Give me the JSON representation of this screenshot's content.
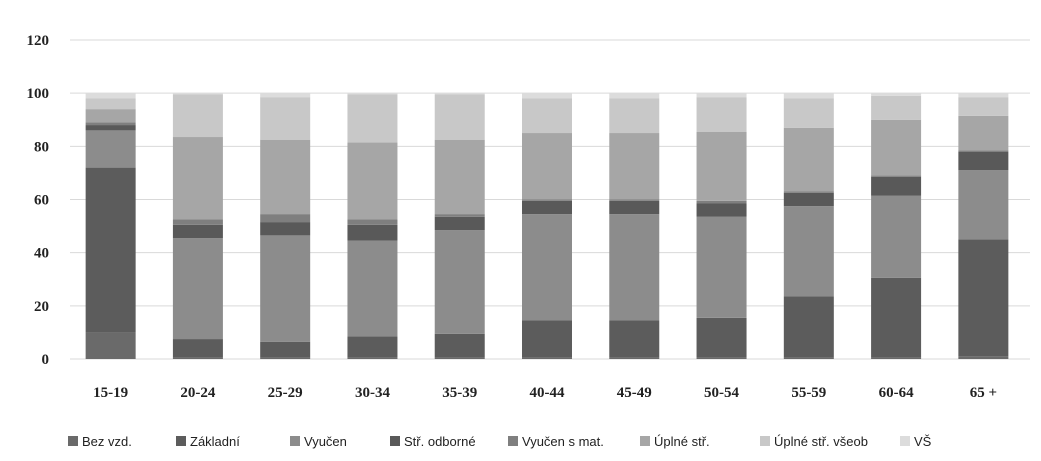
{
  "chart_data": {
    "type": "bar",
    "stacked": true,
    "title": "",
    "xlabel": "",
    "ylabel": "",
    "ylim": [
      0,
      120
    ],
    "yticks": [
      0,
      20,
      40,
      60,
      80,
      100,
      120
    ],
    "grid": true,
    "legend_position": "bottom",
    "categories": [
      "15-19",
      "20-24",
      "25-29",
      "30-34",
      "35-39",
      "40-44",
      "45-49",
      "50-54",
      "55-59",
      "60-64",
      "65 +"
    ],
    "series": [
      {
        "name": "Bez vzd.",
        "color": "#6a6a6a",
        "values": [
          10,
          0.5,
          0.5,
          0.5,
          0.5,
          0.5,
          0.5,
          0.5,
          0.5,
          0.5,
          1
        ]
      },
      {
        "name": "Základní",
        "color": "#5c5c5c",
        "values": [
          62,
          7,
          6,
          8,
          9,
          14,
          14,
          15,
          23,
          30,
          44
        ]
      },
      {
        "name": "Vyučen",
        "color": "#8c8c8c",
        "values": [
          14,
          38,
          40,
          36,
          39,
          40,
          40,
          38,
          34,
          31,
          26
        ]
      },
      {
        "name": "Stř. odborné",
        "color": "#595959",
        "values": [
          2,
          5,
          5,
          6,
          5,
          5,
          5,
          5,
          5,
          7,
          7
        ]
      },
      {
        "name": "Vyučen s mat.",
        "color": "#7f7f7f",
        "values": [
          1,
          2,
          3,
          2,
          1,
          0.5,
          0.5,
          1,
          0.5,
          0.5,
          0.5
        ]
      },
      {
        "name": "Úplné stř.",
        "color": "#a6a6a6",
        "values": [
          5,
          31,
          28,
          29,
          28,
          25,
          25,
          26,
          24,
          21,
          13
        ]
      },
      {
        "name": "Úplné stř. všeob",
        "color": "#c8c8c8",
        "values": [
          4,
          16,
          16,
          18,
          17,
          13,
          13,
          13,
          11,
          9,
          7
        ]
      },
      {
        "name": "VŠ",
        "color": "#dcdcdc",
        "values": [
          2,
          0.5,
          1.5,
          0.5,
          0.5,
          2,
          2,
          1.5,
          2,
          1,
          1.5
        ]
      }
    ]
  }
}
